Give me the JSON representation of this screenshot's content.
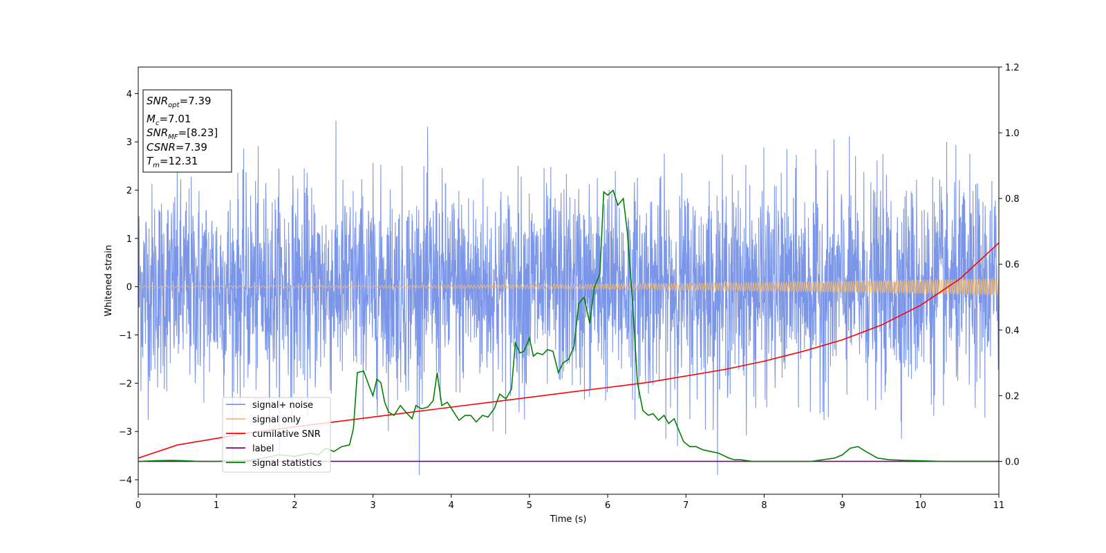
{
  "chart_data": {
    "type": "line",
    "xlabel": "Time (s)",
    "ylabel": "Whitened strain",
    "xlim": [
      0,
      11
    ],
    "ylim": [
      -4.3,
      4.55
    ],
    "y2lim": [
      -0.1,
      1.2
    ],
    "x_ticks": [
      "0",
      "1",
      "2",
      "3",
      "4",
      "5",
      "6",
      "7",
      "8",
      "9",
      "10",
      "11"
    ],
    "y_ticks": [
      "4",
      "3",
      "2",
      "1",
      "0",
      "−1",
      "−2",
      "−3",
      "−4"
    ],
    "y2_ticks": [
      "1.2",
      "1.0",
      "0.8",
      "0.6",
      "0.4",
      "0.2",
      "0.0"
    ],
    "grid": false,
    "legend_position": "lower-left",
    "annotation": [
      {
        "base": "SNR",
        "sub": "opt",
        "value": "=7.39"
      },
      {
        "base": "M",
        "sub": "c",
        "value": "=7.01"
      },
      {
        "base": "SNR",
        "sub": "MF",
        "value": "=[8.23]"
      },
      {
        "base": "CSNR",
        "sub": "",
        "value": "=7.39"
      },
      {
        "base": "T",
        "sub": "m",
        "value": "=12.31"
      }
    ],
    "series": [
      {
        "name": "signal+ noise",
        "color": "#7b96e8",
        "axis": "left",
        "style": "dense noise, roughly ±1.2 bulk with peaks to about 4.2 and troughs to about -3.9"
      },
      {
        "name": "signal only",
        "color": "#f5b96a",
        "axis": "left",
        "style": "chirp oscillation, amplitude about 0.02 at t=0 growing to about 0.18 at t=11"
      },
      {
        "name": "cumilative SNR",
        "color": "#ff0000",
        "axis": "right",
        "x": [
          0,
          0.5,
          1,
          1.5,
          2,
          2.5,
          3,
          3.5,
          4,
          4.5,
          5,
          5.5,
          6,
          6.5,
          7,
          7.5,
          8,
          8.5,
          9,
          9.5,
          10,
          10.5,
          11
        ],
        "values": [
          0.01,
          0.05,
          0.07,
          0.09,
          0.105,
          0.12,
          0.135,
          0.15,
          0.165,
          0.18,
          0.195,
          0.21,
          0.225,
          0.24,
          0.26,
          0.28,
          0.305,
          0.335,
          0.37,
          0.415,
          0.475,
          0.555,
          0.665
        ]
      },
      {
        "name": "label",
        "color": "#800080",
        "axis": "right",
        "x": [
          0,
          11
        ],
        "values": [
          0,
          0
        ]
      },
      {
        "name": "signal statistics",
        "color": "#008000",
        "axis": "right",
        "x": [
          0,
          0.2,
          0.4,
          0.6,
          0.8,
          1.0,
          1.2,
          1.4,
          1.6,
          1.8,
          2.0,
          2.2,
          2.3,
          2.4,
          2.5,
          2.6,
          2.7,
          2.75,
          2.8,
          2.88,
          2.95,
          3.0,
          3.05,
          3.1,
          3.15,
          3.2,
          3.27,
          3.35,
          3.42,
          3.5,
          3.55,
          3.62,
          3.7,
          3.77,
          3.82,
          3.88,
          3.95,
          4.02,
          4.1,
          4.18,
          4.25,
          4.32,
          4.4,
          4.47,
          4.55,
          4.62,
          4.7,
          4.77,
          4.82,
          4.88,
          4.93,
          5.0,
          5.05,
          5.1,
          5.17,
          5.23,
          5.3,
          5.37,
          5.43,
          5.5,
          5.57,
          5.63,
          5.7,
          5.77,
          5.83,
          5.9,
          5.95,
          6.0,
          6.07,
          6.13,
          6.2,
          6.25,
          6.32,
          6.38,
          6.45,
          6.52,
          6.58,
          6.65,
          6.72,
          6.78,
          6.85,
          6.9,
          6.97,
          7.05,
          7.13,
          7.22,
          7.32,
          7.42,
          7.55,
          7.62,
          7.7,
          7.85,
          8.0,
          8.3,
          8.6,
          8.9,
          9.0,
          9.1,
          9.2,
          9.3,
          9.45,
          9.6,
          9.8,
          10.0,
          10.3,
          10.6,
          11.0
        ],
        "values": [
          0,
          0.002,
          0.003,
          0.002,
          0.0,
          0.0,
          0.002,
          0.003,
          0.01,
          0.02,
          0.015,
          0.025,
          0.02,
          0.04,
          0.03,
          0.045,
          0.05,
          0.1,
          0.27,
          0.275,
          0.23,
          0.2,
          0.25,
          0.24,
          0.18,
          0.15,
          0.14,
          0.17,
          0.15,
          0.13,
          0.17,
          0.16,
          0.165,
          0.185,
          0.27,
          0.17,
          0.18,
          0.155,
          0.125,
          0.14,
          0.14,
          0.12,
          0.14,
          0.135,
          0.16,
          0.205,
          0.19,
          0.22,
          0.36,
          0.33,
          0.335,
          0.375,
          0.32,
          0.33,
          0.325,
          0.34,
          0.335,
          0.27,
          0.3,
          0.31,
          0.35,
          0.48,
          0.5,
          0.42,
          0.53,
          0.57,
          0.82,
          0.81,
          0.825,
          0.78,
          0.8,
          0.7,
          0.48,
          0.24,
          0.155,
          0.14,
          0.145,
          0.125,
          0.14,
          0.115,
          0.13,
          0.1,
          0.06,
          0.045,
          0.045,
          0.035,
          0.03,
          0.025,
          0.01,
          0.005,
          0.005,
          0.0,
          0.0,
          0.0,
          0.0,
          0.01,
          0.02,
          0.04,
          0.045,
          0.03,
          0.01,
          0.005,
          0.003,
          0.002,
          0.0,
          0.0,
          0.0
        ]
      }
    ]
  }
}
